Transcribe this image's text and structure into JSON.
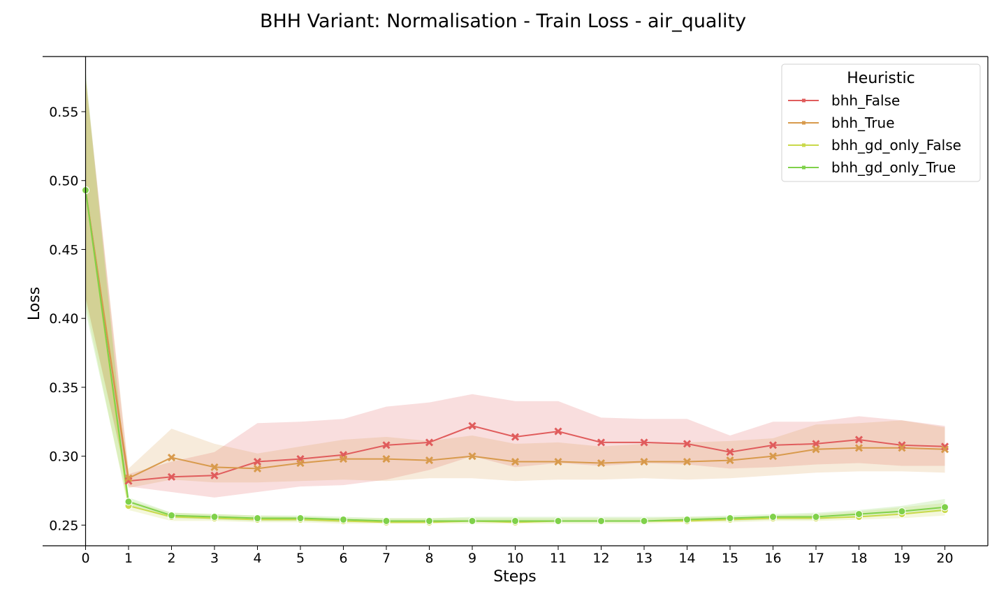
{
  "chart_data": {
    "type": "line",
    "title": "BHH Variant: Normalisation - Train Loss - air_quality",
    "xlabel": "Steps",
    "ylabel": "Loss",
    "xlim": [
      -1,
      21
    ],
    "ylim": [
      0.235,
      0.59
    ],
    "x": [
      0,
      1,
      2,
      3,
      4,
      5,
      6,
      7,
      8,
      9,
      10,
      11,
      12,
      13,
      14,
      15,
      16,
      17,
      18,
      19,
      20
    ],
    "x_ticks": [
      "0",
      "1",
      "2",
      "3",
      "4",
      "5",
      "6",
      "7",
      "8",
      "9",
      "10",
      "11",
      "12",
      "13",
      "14",
      "15",
      "16",
      "17",
      "18",
      "19",
      "20"
    ],
    "y_ticks": [
      0.25,
      0.3,
      0.35,
      0.4,
      0.45,
      0.5,
      0.55
    ],
    "y_tick_labels": [
      "0.25",
      "0.30",
      "0.35",
      "0.40",
      "0.45",
      "0.50",
      "0.55"
    ],
    "legend": {
      "title": "Heuristic",
      "placement": "top-right"
    },
    "grid": false,
    "series": [
      {
        "name": "bhh_False",
        "color": "#e05c5c",
        "marker": "x",
        "values": [
          0.493,
          0.282,
          0.285,
          0.286,
          0.296,
          0.298,
          0.301,
          0.308,
          0.31,
          0.322,
          0.314,
          0.318,
          0.31,
          0.31,
          0.309,
          0.303,
          0.308,
          0.309,
          0.312,
          0.308,
          0.307
        ],
        "lower": [
          0.415,
          0.278,
          0.274,
          0.27,
          0.274,
          0.278,
          0.279,
          0.283,
          0.29,
          0.3,
          0.292,
          0.295,
          0.293,
          0.295,
          0.294,
          0.291,
          0.292,
          0.294,
          0.295,
          0.293,
          0.293
        ],
        "upper": [
          0.575,
          0.287,
          0.296,
          0.303,
          0.324,
          0.325,
          0.327,
          0.336,
          0.339,
          0.345,
          0.34,
          0.34,
          0.328,
          0.327,
          0.327,
          0.315,
          0.325,
          0.325,
          0.329,
          0.326,
          0.322
        ]
      },
      {
        "name": "bhh_True",
        "color": "#d89a4c",
        "marker": "x",
        "values": [
          0.493,
          0.284,
          0.299,
          0.292,
          0.291,
          0.295,
          0.298,
          0.298,
          0.297,
          0.3,
          0.296,
          0.296,
          0.295,
          0.296,
          0.296,
          0.297,
          0.3,
          0.305,
          0.306,
          0.306,
          0.305
        ],
        "lower": [
          0.415,
          0.277,
          0.283,
          0.281,
          0.281,
          0.282,
          0.283,
          0.282,
          0.284,
          0.284,
          0.282,
          0.283,
          0.283,
          0.284,
          0.283,
          0.284,
          0.286,
          0.288,
          0.289,
          0.289,
          0.288
        ],
        "upper": [
          0.575,
          0.291,
          0.32,
          0.309,
          0.302,
          0.307,
          0.312,
          0.314,
          0.311,
          0.315,
          0.309,
          0.31,
          0.307,
          0.309,
          0.31,
          0.311,
          0.313,
          0.323,
          0.324,
          0.326,
          0.321
        ]
      },
      {
        "name": "bhh_gd_only_False",
        "color": "#c9d94a",
        "marker": "o",
        "values": [
          0.493,
          0.264,
          0.256,
          0.255,
          0.254,
          0.254,
          0.253,
          0.252,
          0.252,
          0.253,
          0.252,
          0.253,
          0.253,
          0.253,
          0.253,
          0.254,
          0.255,
          0.255,
          0.256,
          0.258,
          0.261
        ],
        "lower": [
          0.41,
          0.261,
          0.253,
          0.253,
          0.252,
          0.252,
          0.251,
          0.251,
          0.251,
          0.251,
          0.251,
          0.251,
          0.251,
          0.251,
          0.252,
          0.252,
          0.253,
          0.253,
          0.254,
          0.255,
          0.257
        ],
        "upper": [
          0.575,
          0.268,
          0.259,
          0.258,
          0.257,
          0.256,
          0.255,
          0.255,
          0.255,
          0.255,
          0.255,
          0.255,
          0.255,
          0.255,
          0.256,
          0.256,
          0.257,
          0.258,
          0.26,
          0.263,
          0.266
        ]
      },
      {
        "name": "bhh_gd_only_True",
        "color": "#7fd14a",
        "marker": "o",
        "values": [
          0.493,
          0.267,
          0.257,
          0.256,
          0.255,
          0.255,
          0.254,
          0.253,
          0.253,
          0.253,
          0.253,
          0.253,
          0.253,
          0.253,
          0.254,
          0.255,
          0.256,
          0.256,
          0.258,
          0.26,
          0.263
        ],
        "lower": [
          0.405,
          0.264,
          0.255,
          0.254,
          0.253,
          0.253,
          0.252,
          0.252,
          0.252,
          0.252,
          0.252,
          0.252,
          0.252,
          0.252,
          0.253,
          0.253,
          0.254,
          0.254,
          0.256,
          0.258,
          0.26
        ],
        "upper": [
          0.58,
          0.27,
          0.259,
          0.258,
          0.257,
          0.257,
          0.256,
          0.255,
          0.255,
          0.256,
          0.256,
          0.256,
          0.256,
          0.256,
          0.256,
          0.257,
          0.258,
          0.259,
          0.261,
          0.264,
          0.269
        ]
      }
    ]
  }
}
